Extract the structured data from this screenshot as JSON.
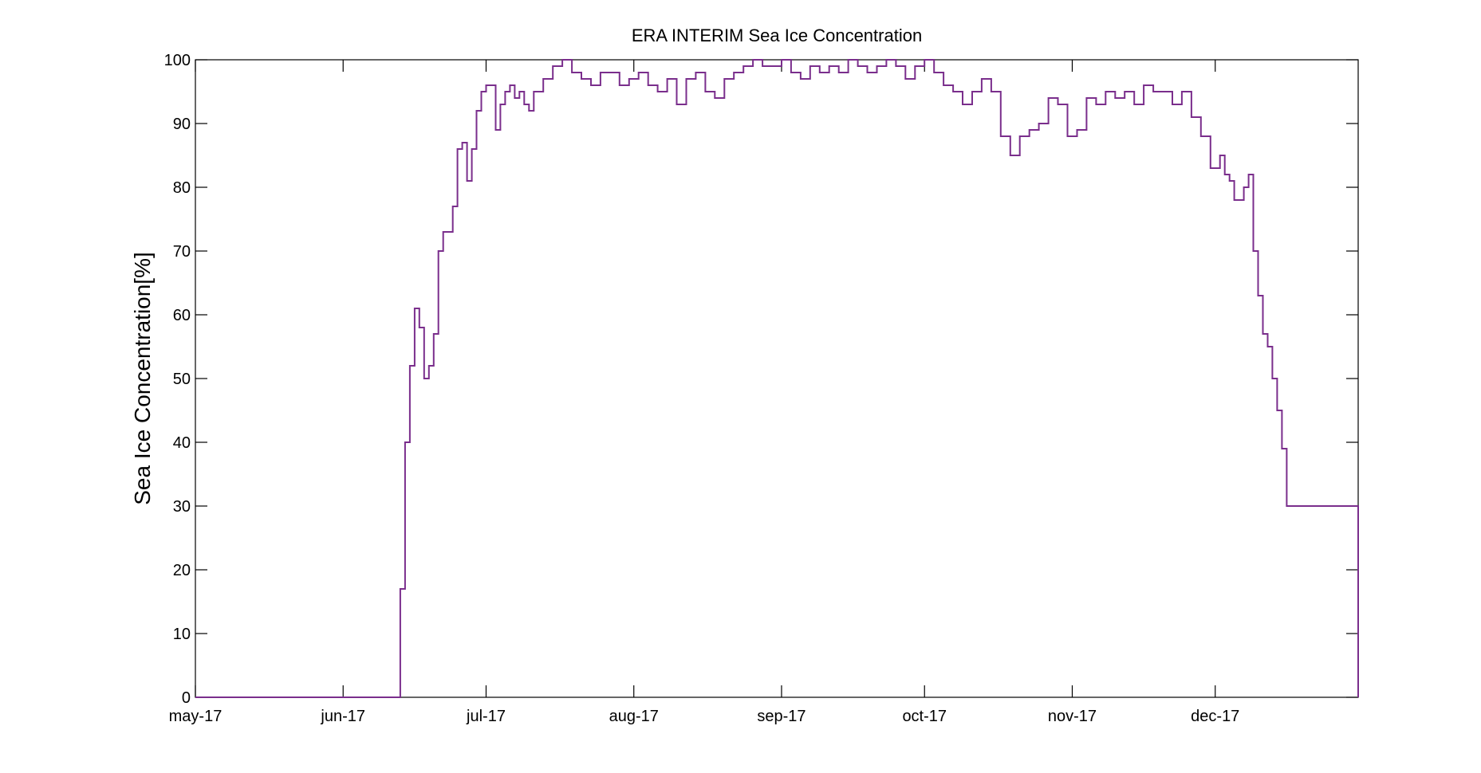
{
  "chart_data": {
    "type": "line",
    "title": "ERA INTERIM Sea Ice Concentration",
    "xlabel": "",
    "ylabel": "Sea Ice Concentration[%]",
    "ylim": [
      0,
      100
    ],
    "xlim": [
      "2017-05-01",
      "2017-12-31"
    ],
    "grid": false,
    "yticks": [
      0,
      10,
      20,
      30,
      40,
      50,
      60,
      70,
      80,
      90,
      100
    ],
    "xticks": [
      {
        "date": "2017-05-01",
        "label": "may-17"
      },
      {
        "date": "2017-06-01",
        "label": "jun-17"
      },
      {
        "date": "2017-07-01",
        "label": "jul-17"
      },
      {
        "date": "2017-08-01",
        "label": "aug-17"
      },
      {
        "date": "2017-09-01",
        "label": "sep-17"
      },
      {
        "date": "2017-10-01",
        "label": "oct-17"
      },
      {
        "date": "2017-11-01",
        "label": "nov-17"
      },
      {
        "date": "2017-12-01",
        "label": "dec-17"
      }
    ],
    "line_color": "#7a2e8c",
    "series": [
      {
        "x": [
          "2017-05-01",
          "2017-06-12",
          "2017-06-13",
          "2017-06-14",
          "2017-06-15",
          "2017-06-16",
          "2017-06-17",
          "2017-06-18",
          "2017-06-19",
          "2017-06-20",
          "2017-06-21",
          "2017-06-22",
          "2017-06-23",
          "2017-06-24",
          "2017-06-25",
          "2017-06-26",
          "2017-06-27",
          "2017-06-28",
          "2017-06-29",
          "2017-06-30",
          "2017-07-01",
          "2017-07-02",
          "2017-07-03",
          "2017-07-04",
          "2017-07-05",
          "2017-07-06",
          "2017-07-07",
          "2017-07-08",
          "2017-07-09",
          "2017-07-10",
          "2017-07-11",
          "2017-07-13",
          "2017-07-15",
          "2017-07-17",
          "2017-07-19",
          "2017-07-21",
          "2017-07-23",
          "2017-07-25",
          "2017-07-27",
          "2017-07-29",
          "2017-07-31",
          "2017-08-02",
          "2017-08-04",
          "2017-08-06",
          "2017-08-08",
          "2017-08-10",
          "2017-08-12",
          "2017-08-14",
          "2017-08-16",
          "2017-08-18",
          "2017-08-20",
          "2017-08-22",
          "2017-08-24",
          "2017-08-26",
          "2017-08-28",
          "2017-08-30",
          "2017-09-01",
          "2017-09-03",
          "2017-09-05",
          "2017-09-07",
          "2017-09-09",
          "2017-09-11",
          "2017-09-13",
          "2017-09-15",
          "2017-09-17",
          "2017-09-19",
          "2017-09-21",
          "2017-09-23",
          "2017-09-25",
          "2017-09-27",
          "2017-09-29",
          "2017-10-01",
          "2017-10-03",
          "2017-10-05",
          "2017-10-07",
          "2017-10-09",
          "2017-10-11",
          "2017-10-13",
          "2017-10-15",
          "2017-10-17",
          "2017-10-19",
          "2017-10-21",
          "2017-10-23",
          "2017-10-25",
          "2017-10-27",
          "2017-10-29",
          "2017-10-31",
          "2017-11-02",
          "2017-11-04",
          "2017-11-06",
          "2017-11-08",
          "2017-11-10",
          "2017-11-12",
          "2017-11-14",
          "2017-11-16",
          "2017-11-18",
          "2017-11-20",
          "2017-11-22",
          "2017-11-24",
          "2017-11-26",
          "2017-11-28",
          "2017-11-30",
          "2017-12-01",
          "2017-12-02",
          "2017-12-03",
          "2017-12-04",
          "2017-12-05",
          "2017-12-06",
          "2017-12-07",
          "2017-12-08",
          "2017-12-09",
          "2017-12-10",
          "2017-12-11",
          "2017-12-12",
          "2017-12-13",
          "2017-12-14",
          "2017-12-15",
          "2017-12-16",
          "2017-12-31"
        ],
        "y": [
          0,
          0,
          17,
          40,
          52,
          61,
          58,
          50,
          52,
          57,
          70,
          73,
          73,
          77,
          86,
          87,
          81,
          86,
          92,
          95,
          96,
          96,
          89,
          93,
          95,
          96,
          94,
          95,
          93,
          92,
          95,
          97,
          99,
          100,
          98,
          97,
          96,
          98,
          98,
          96,
          97,
          98,
          96,
          95,
          97,
          93,
          97,
          98,
          95,
          94,
          97,
          98,
          99,
          100,
          99,
          99,
          100,
          98,
          97,
          99,
          98,
          99,
          98,
          100,
          99,
          98,
          99,
          100,
          99,
          97,
          99,
          100,
          98,
          96,
          95,
          93,
          95,
          97,
          95,
          88,
          85,
          88,
          89,
          90,
          94,
          93,
          88,
          89,
          94,
          93,
          95,
          94,
          95,
          93,
          96,
          95,
          95,
          93,
          95,
          91,
          88,
          83,
          83,
          85,
          82,
          81,
          78,
          78,
          80,
          82,
          70,
          63,
          57,
          55,
          50,
          45,
          39,
          30,
          0
        ]
      }
    ]
  }
}
